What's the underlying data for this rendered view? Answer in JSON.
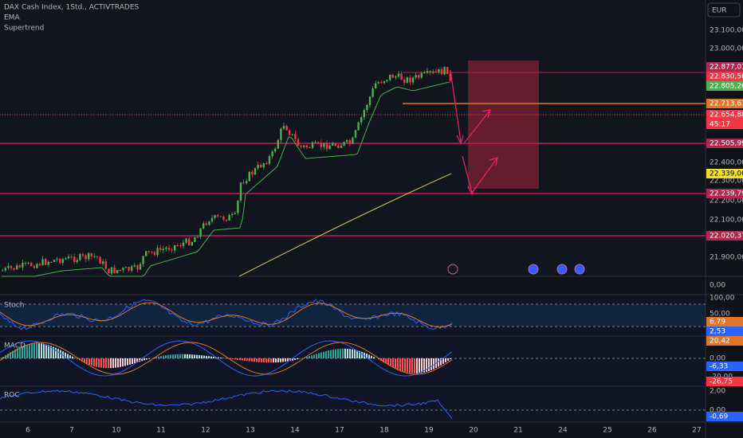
{
  "header": {
    "symbol": "DAX Cash Index, 1Std., ACTIVTRADES",
    "indicators": [
      "EMA",
      "Supertrend"
    ],
    "currency": "EUR"
  },
  "price_axis": {
    "labels": [
      "23.100,00",
      "23.000,00",
      "22.400,00",
      "22.300,00",
      "22.200,00",
      "22.100,00",
      "21.900,00"
    ]
  },
  "price_tags": [
    "22.877,01",
    "22.830,50",
    "22.805,26",
    "22.713,63",
    "22.654,88",
    "22.505,99",
    "22.339,00",
    "22.239,79",
    "22.020,37"
  ],
  "countdown": "45:17",
  "panels": {
    "volume_axis": "0,00",
    "stoch": {
      "title": "Stoch",
      "axis": [
        "100,00",
        "50,00"
      ],
      "tags": [
        "6,79",
        "2,53"
      ]
    },
    "macd": {
      "title": "MACD",
      "axis": [
        "0,00",
        "-20,00"
      ],
      "tags": [
        "20,42",
        "-6,33",
        "-26,75"
      ]
    },
    "roc": {
      "title": "ROC",
      "axis": [
        "2,00",
        "0,00"
      ],
      "tags": [
        "-0,69"
      ]
    }
  },
  "time_axis": [
    "6",
    "7",
    "10",
    "11",
    "12",
    "13",
    "14",
    "17",
    "18",
    "19",
    "20",
    "21",
    "24",
    "25",
    "26",
    "27"
  ]
}
